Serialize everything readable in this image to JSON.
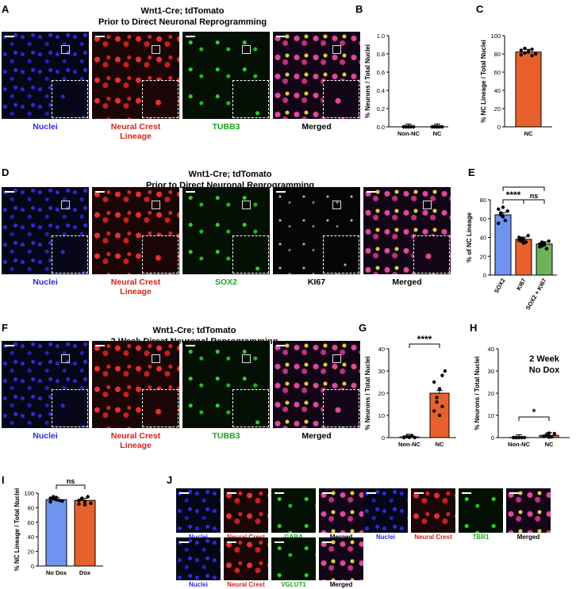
{
  "panels": {
    "A": {
      "label": "A",
      "title1": "Wnt1-Cre; tdTomato",
      "title2": "Prior to Direct Neuronal Reprogramming",
      "captions": [
        {
          "text": "Nuclei",
          "color": "blue"
        },
        {
          "text": "Neural Crest\nLineage",
          "color": "red"
        },
        {
          "text": "TUBB3",
          "color": "green"
        },
        {
          "text": "Merged",
          "color": "black"
        }
      ]
    },
    "D": {
      "label": "D",
      "title1": "Wnt1-Cre; tdTomato",
      "title2": "Prior to Direct Neuronal Reprogramming",
      "captions": [
        {
          "text": "Nuclei",
          "color": "blue"
        },
        {
          "text": "Neural Crest\nLineage",
          "color": "red"
        },
        {
          "text": "SOX2",
          "color": "green"
        },
        {
          "text": "KI67",
          "color": "black"
        },
        {
          "text": "Merged",
          "color": "black"
        }
      ]
    },
    "F": {
      "label": "F",
      "title1": "Wnt1-Cre; tdTomato",
      "title2": "2 Week Direct Neuronal Reprogramming",
      "captions": [
        {
          "text": "Nuclei",
          "color": "blue"
        },
        {
          "text": "Neural Crest\nLineage",
          "color": "red"
        },
        {
          "text": "TUBB3",
          "color": "green"
        },
        {
          "text": "Merged",
          "color": "black"
        }
      ]
    },
    "J": {
      "label": "J",
      "row1a": [
        {
          "text": "Nuclei",
          "color": "blue"
        },
        {
          "text": "Neural Crest",
          "color": "red"
        },
        {
          "text": "GABA",
          "color": "green"
        },
        {
          "text": "Merged",
          "color": "black"
        }
      ],
      "row1b": [
        {
          "text": "Nuclei",
          "color": "blue"
        },
        {
          "text": "Neural Crest",
          "color": "red"
        },
        {
          "text": "TBR1",
          "color": "green"
        },
        {
          "text": "Merged",
          "color": "black"
        }
      ],
      "row2": [
        {
          "text": "Nuclei",
          "color": "blue"
        },
        {
          "text": "Neural Crest",
          "color": "red"
        },
        {
          "text": "VGLUT1",
          "color": "green"
        },
        {
          "text": "Merged",
          "color": "black"
        }
      ]
    }
  },
  "chart_data": [
    {
      "panel": "B",
      "type": "bar",
      "ylabel": "% Neurons / Total Nuclei",
      "categories": [
        "Non-NC",
        "NC"
      ],
      "values": [
        0,
        0
      ],
      "ylim": [
        0,
        1
      ],
      "yticks": [
        0.0,
        0.2,
        0.4,
        0.6,
        0.8,
        1.0
      ],
      "points": [
        [
          0,
          0,
          0,
          0,
          0,
          0,
          0,
          0
        ],
        [
          0,
          0,
          0,
          0,
          0,
          0,
          0,
          0
        ]
      ],
      "colors": [
        "#7f7f7f",
        "#7f7f7f"
      ]
    },
    {
      "panel": "C",
      "type": "bar",
      "ylabel": "% NC Lineage / Total Nuclei",
      "categories": [
        "NC"
      ],
      "values": [
        82
      ],
      "ylim": [
        0,
        100
      ],
      "yticks": [
        0,
        20,
        40,
        60,
        80,
        100
      ],
      "points": [
        [
          79,
          81,
          83,
          85,
          80,
          84,
          86,
          82,
          78
        ]
      ],
      "colors": [
        "#e8612c"
      ]
    },
    {
      "panel": "E",
      "type": "bar",
      "ylabel": "% of NC Lineage",
      "categories": [
        "SOX2",
        "KI67",
        "SOX2 + KI67"
      ],
      "values": [
        64,
        38,
        33
      ],
      "ylim": [
        0,
        80
      ],
      "yticks": [
        0,
        20,
        40,
        60,
        80
      ],
      "points": [
        [
          70,
          66,
          62,
          58,
          68,
          55,
          64,
          72
        ],
        [
          40,
          36,
          38,
          35,
          42,
          37,
          39,
          34
        ],
        [
          30,
          35,
          32,
          28,
          36,
          33,
          31,
          34
        ]
      ],
      "colors": [
        "#6f93ee",
        "#e8612c",
        "#6cb35a"
      ],
      "annotations": [
        "****",
        "ns",
        "****"
      ]
    },
    {
      "panel": "G",
      "type": "bar",
      "ylabel": "% Neurons / Total Nuclei",
      "categories": [
        "Non-NC",
        "NC"
      ],
      "values": [
        0.3,
        20
      ],
      "ylim": [
        0,
        40
      ],
      "yticks": [
        0,
        10,
        20,
        30,
        40
      ],
      "points": [
        [
          0,
          0.5,
          0.3,
          0.8,
          0,
          0.2,
          0.4,
          0.1
        ],
        [
          12,
          18,
          22,
          28,
          30,
          25,
          16,
          10,
          14
        ]
      ],
      "colors": [
        "#7f7f7f",
        "#e8612c"
      ],
      "annotations": [
        "****"
      ]
    },
    {
      "panel": "H",
      "type": "bar",
      "ylabel": "% Neurons / Total Nuclei",
      "categories": [
        "Non-NC",
        "NC"
      ],
      "values": [
        0.1,
        1
      ],
      "ylim": [
        0,
        40
      ],
      "yticks": [
        0,
        10,
        20,
        30,
        40
      ],
      "points": [
        [
          0,
          0,
          0,
          0,
          0,
          0,
          0,
          0
        ],
        [
          0.5,
          1.2,
          2,
          0.3,
          1.8,
          0.6,
          1,
          0.2
        ]
      ],
      "colors": [
        "#7f7f7f",
        "#e8612c"
      ],
      "annotations": [
        "*"
      ],
      "inset_title": "2 Week\nNo Dox"
    },
    {
      "panel": "I",
      "type": "bar",
      "ylabel": "% NC Lineage / Total Nuclei",
      "categories": [
        "No Dox",
        "Dox"
      ],
      "values": [
        91,
        90
      ],
      "ylim": [
        0,
        100
      ],
      "yticks": [
        0,
        20,
        40,
        60,
        80,
        100
      ],
      "points": [
        [
          88,
          92,
          94,
          90,
          89,
          93,
          95,
          91
        ],
        [
          85,
          92,
          88,
          95,
          86,
          90,
          93,
          84
        ]
      ],
      "colors": [
        "#6f93ee",
        "#e8612c"
      ],
      "annotations": [
        "ns"
      ]
    }
  ]
}
